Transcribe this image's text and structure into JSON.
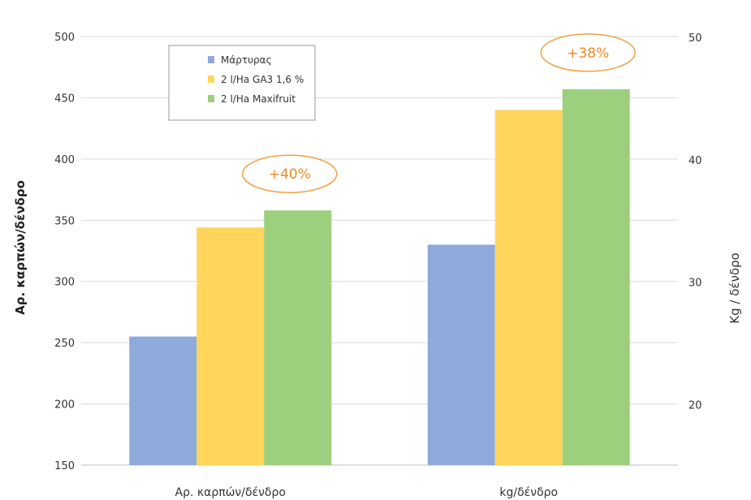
{
  "chart_data": {
    "type": "bar",
    "categories": [
      "Αρ. καρπών/δένδρο",
      "kg/δένδρο"
    ],
    "series": [
      {
        "name": "Μάρτυρας",
        "color": "#8eaadb",
        "values": [
          255,
          33
        ]
      },
      {
        "name": "2 l/Ha GA3 1,6 %",
        "color": "#ffd55b",
        "values": [
          344,
          44
        ]
      },
      {
        "name": "2 l/Ha Maxifruit",
        "color": "#9dd07d",
        "values": [
          358,
          45.7
        ]
      }
    ],
    "series_axis": [
      "left",
      "right"
    ],
    "ylabel": "Αρ. καρπών/δένδρο",
    "ylabel_right": "Kg / δένδρο",
    "ylim": [
      150,
      500
    ],
    "ylim_right": [
      15,
      50
    ],
    "yticks": [
      150,
      200,
      250,
      300,
      350,
      400,
      450,
      500
    ],
    "yticks_right": [
      20,
      30,
      40,
      50
    ],
    "grid": true,
    "legend_position": "top-left",
    "annotations": [
      {
        "text": "+40%",
        "category_index": 0
      },
      {
        "text": "+38%",
        "category_index": 1
      }
    ]
  }
}
